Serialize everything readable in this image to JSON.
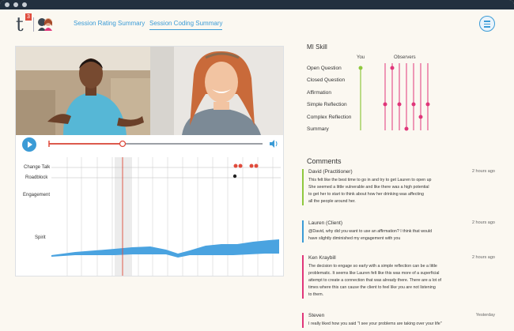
{
  "nav": {
    "link1": "Session Rating Summary",
    "link2": "Session Coding Summary",
    "logo_sup": "3"
  },
  "colors": {
    "accent": "#3b9bd6",
    "engagement": "#4aa3e0",
    "spirit": "#e0367a",
    "scrubber": "#e04b3c",
    "green": "#8fc83f",
    "pink": "#e0367a"
  },
  "chart": {
    "rows": [
      "Change Talk",
      "Roadblock",
      "Engagement",
      "Spirit"
    ]
  },
  "mi": {
    "title": "MI Skill",
    "col_you": "You",
    "col_observers": "Observers",
    "skills": [
      "Open Question",
      "Closed Question",
      "Affirmation",
      "Simple Reflection",
      "Complex Reflection",
      "Summary"
    ]
  },
  "comments": {
    "title": "Comments",
    "items": [
      {
        "author": "David (Practitioner)",
        "time": "2 hours ago",
        "color": "#8fc83f",
        "lines": [
          "This felt like the best time to go in and try to get Lauren to open up",
          "She seemed a little vulnerable and like there was a high potential",
          "to get her to start to think about how her drinking was affecting",
          "all the people around her."
        ]
      },
      {
        "author": "Lauren (Client)",
        "time": "2 hours ago",
        "color": "#3b9bd6",
        "lines": [
          "@David, why did you want to use an affirmation? I think that would",
          "have slightly diminished my engagement with you"
        ]
      },
      {
        "author": "Ken Kraybill",
        "time": "2 hours ago",
        "color": "#e0367a",
        "lines": [
          "The decision to engage so early with a simple reflection can be a little",
          "problematic. It seems like Lauren felt like this was more of a superficial",
          "attempt to create a connection that was already there. There are a lot of",
          "times where this can cause the client to feel like you are not listening",
          "to them."
        ]
      },
      {
        "author": "Steven",
        "time": "Yesterday",
        "color": "#e0367a",
        "lines": [
          "I really liked how you said \"I see your problems are taking over your life\""
        ]
      }
    ]
  }
}
